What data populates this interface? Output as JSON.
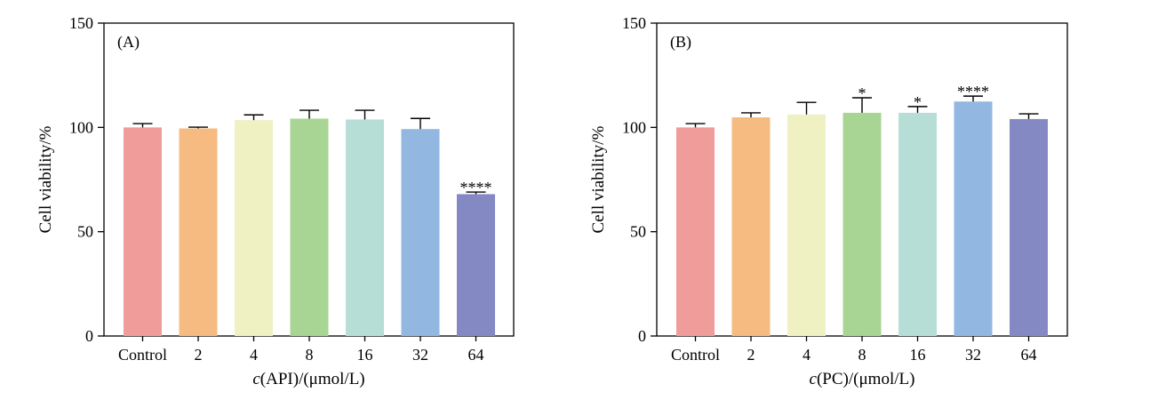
{
  "chart_data": [
    {
      "type": "bar",
      "panel_label": "(A)",
      "categories": [
        "Control",
        "2",
        "4",
        "8",
        "16",
        "32",
        "64"
      ],
      "values": [
        100,
        99.5,
        103.5,
        104.2,
        103.8,
        99.2,
        68
      ],
      "errors": [
        1.8,
        0.6,
        2.5,
        4,
        4.4,
        5.1,
        1.0
      ],
      "significance": [
        "",
        "",
        "",
        "",
        "",
        "",
        "****"
      ],
      "colors": [
        "#f09c9a",
        "#f5bb80",
        "#eff1c2",
        "#a8d593",
        "#b6ded6",
        "#92b7e1",
        "#8489c3"
      ],
      "xlabel_italic": "c",
      "xlabel_rest": "(API)/(μmol/L)",
      "ylabel": "Cell viability/%",
      "ylim": [
        0,
        150
      ],
      "yticks": [
        "0",
        "50",
        "100",
        "150"
      ],
      "grid": false
    },
    {
      "type": "bar",
      "panel_label": "(B)",
      "categories": [
        "Control",
        "2",
        "4",
        "8",
        "16",
        "32",
        "64"
      ],
      "values": [
        100,
        104.8,
        106.2,
        107,
        107,
        112.4,
        104
      ],
      "errors": [
        1.8,
        2.2,
        5.8,
        7.2,
        3,
        2.6,
        2.5
      ],
      "significance": [
        "",
        "",
        "",
        "*",
        "*",
        "****",
        ""
      ],
      "colors": [
        "#f09c9a",
        "#f5bb80",
        "#eff1c2",
        "#a8d593",
        "#b6ded6",
        "#92b7e1",
        "#8489c3"
      ],
      "xlabel_italic": "c",
      "xlabel_rest": "(PC)/(μmol/L)",
      "ylabel": "Cell viability/%",
      "ylim": [
        0,
        150
      ],
      "yticks": [
        "0",
        "50",
        "100",
        "150"
      ],
      "grid": false
    }
  ]
}
